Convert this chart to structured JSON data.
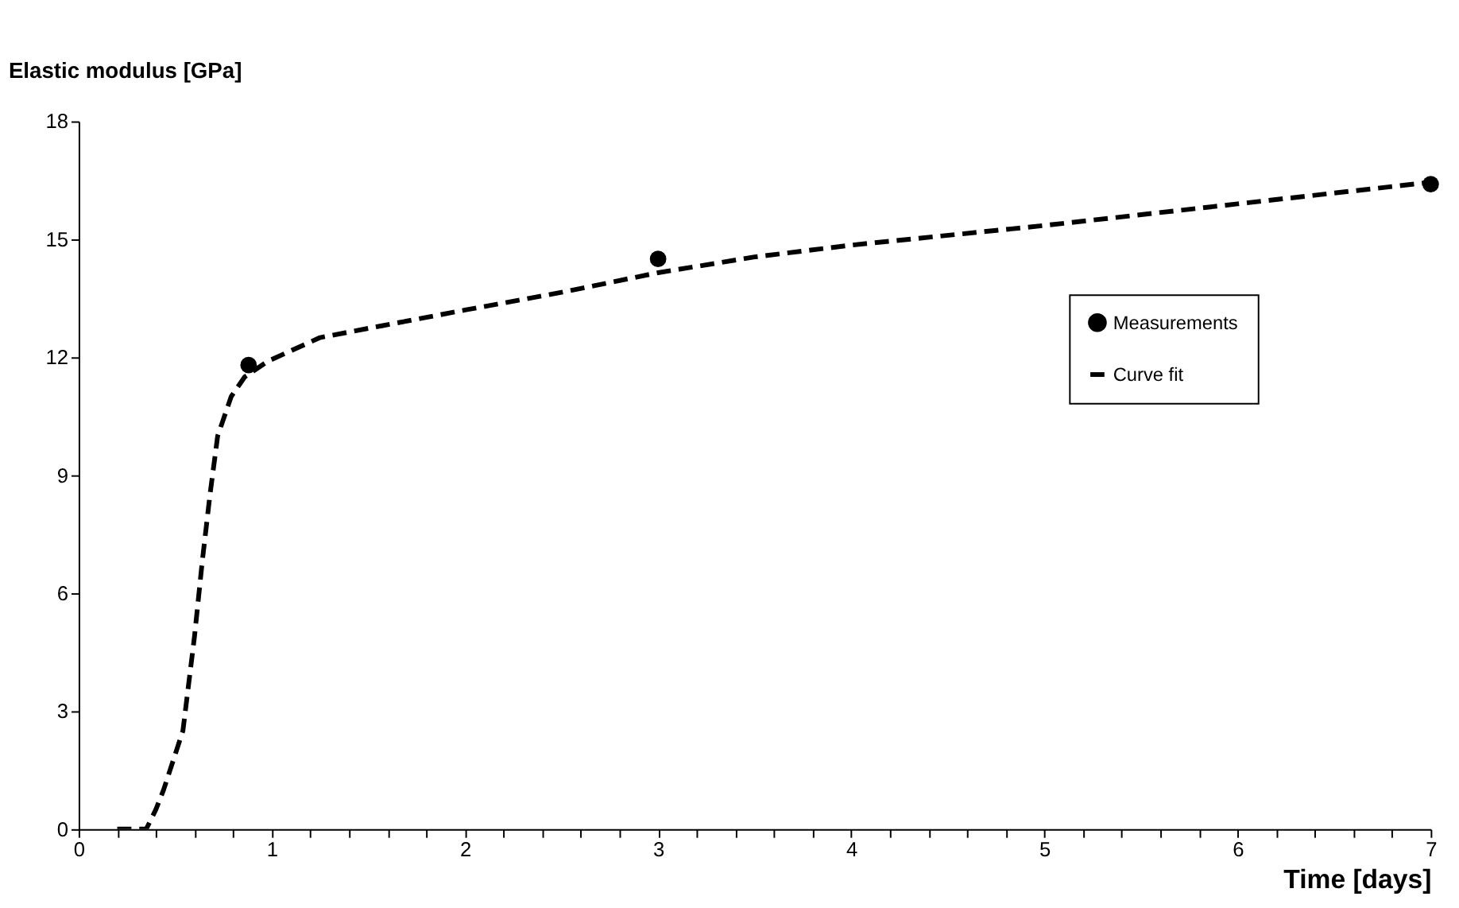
{
  "chart_data": {
    "type": "line",
    "xlabel": "Time [days]",
    "ylabel": "Elastic modulus [GPa]",
    "xlim": [
      0,
      7
    ],
    "ylim": [
      0,
      18
    ],
    "xticks": [
      0,
      {
        "value": 0.2,
        "label": null
      },
      {
        "value": 0.4,
        "label": null
      },
      {
        "value": 0.6,
        "label": null
      },
      {
        "value": 0.8,
        "label": null
      },
      1,
      {
        "value": 1.2,
        "label": null
      },
      {
        "value": 1.4,
        "label": null
      },
      {
        "value": 1.6,
        "label": null
      },
      {
        "value": 1.8,
        "label": null
      },
      2,
      {
        "value": 2.2,
        "label": null
      },
      {
        "value": 2.4,
        "label": null
      },
      {
        "value": 2.6,
        "label": null
      },
      {
        "value": 2.8,
        "label": null
      },
      3,
      {
        "value": 3.2,
        "label": null
      },
      {
        "value": 3.4,
        "label": null
      },
      {
        "value": 3.6,
        "label": null
      },
      {
        "value": 3.8,
        "label": null
      },
      4,
      {
        "value": 4.2,
        "label": null
      },
      {
        "value": 4.4,
        "label": null
      },
      {
        "value": 4.6,
        "label": null
      },
      {
        "value": 4.8,
        "label": null
      },
      5,
      {
        "value": 5.2,
        "label": null
      },
      {
        "value": 5.4,
        "label": null
      },
      {
        "value": 5.6,
        "label": null
      },
      {
        "value": 5.8,
        "label": null
      },
      6,
      {
        "value": 6.2,
        "label": null
      },
      {
        "value": 6.4,
        "label": null
      },
      {
        "value": 6.6,
        "label": null
      },
      {
        "value": 6.8,
        "label": null
      },
      7
    ],
    "yticks": [
      0,
      3,
      6,
      9,
      12,
      15,
      18
    ],
    "grid": false,
    "legend": "top right",
    "series": [
      {
        "name": "Measurements",
        "type": "scatter",
        "marker": "circle",
        "color": "#000000",
        "x": [
          0.88,
          3.0,
          7.0
        ],
        "values": [
          11.8,
          14.5,
          16.4
        ]
      },
      {
        "name": "Curve fit",
        "marker": "none",
        "line_style": "dashed",
        "color": "#000000",
        "x": [
          0.2,
          0.35,
          0.4,
          0.44,
          0.54,
          0.6,
          0.64,
          0.68,
          0.72,
          0.79,
          0.86,
          0.98,
          1.25,
          1.57,
          2.0,
          2.5,
          3.0,
          3.5,
          4.0,
          5.0,
          6.0,
          7.0
        ],
        "values": [
          0,
          0,
          0.5,
          1.0,
          2.5,
          4.9,
          6.8,
          8.5,
          10.0,
          11.0,
          11.5,
          11.9,
          12.5,
          12.8,
          13.2,
          13.65,
          14.15,
          14.55,
          14.85,
          15.35,
          15.9,
          16.45
        ]
      }
    ]
  }
}
